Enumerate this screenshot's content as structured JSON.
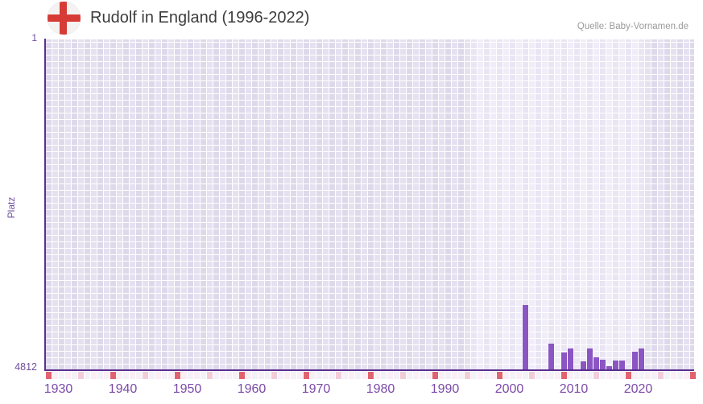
{
  "header": {
    "title": "Rudolf in England (1996-2022)",
    "source": "Quelle: Baby-Vornamen.de",
    "flag_icon": "england-flag-icon"
  },
  "chart_data": {
    "type": "bar",
    "title": "Rudolf in England (1996-2022)",
    "xlabel": "",
    "ylabel": "Platz",
    "y_axis": {
      "top_label": "1",
      "bottom_label": "4812",
      "min": 1,
      "max": 4812,
      "inverted": true
    },
    "x_axis": {
      "start_year": 1930,
      "end_year": 2030,
      "tick_years": [
        1930,
        1940,
        1950,
        1960,
        1970,
        1980,
        1990,
        2000,
        2010,
        2020
      ]
    },
    "highlight_range": {
      "from": 1996,
      "to": 2022
    },
    "grid": true,
    "legend": "none",
    "points": [
      {
        "year": 2004,
        "rank": 3860
      },
      {
        "year": 2008,
        "rank": 4424
      },
      {
        "year": 2010,
        "rank": 4553
      },
      {
        "year": 2011,
        "rank": 4497
      },
      {
        "year": 2013,
        "rank": 4684
      },
      {
        "year": 2014,
        "rank": 4499
      },
      {
        "year": 2015,
        "rank": 4623
      },
      {
        "year": 2016,
        "rank": 4658
      },
      {
        "year": 2017,
        "rank": 4748
      },
      {
        "year": 2018,
        "rank": 4670
      },
      {
        "year": 2019,
        "rank": 4670
      },
      {
        "year": 2021,
        "rank": 4538
      },
      {
        "year": 2022,
        "rank": 4499
      }
    ],
    "colors": {
      "bar": "#8b55c4",
      "axis_line": "#5b2f91",
      "grid_a": "#ded9ea",
      "grid_b": "#e5e1f0",
      "band_a": "#e9e5f3",
      "band_b": "#f0edf8",
      "tick_label": "#7b4aa8",
      "rank_label": "#6f4f9e",
      "title": "#3d3d3d",
      "source": "#9b9b9b",
      "strip_decade": "#e0636f",
      "strip_half": "#f2cdd8",
      "strip_even": "#f5f1f9",
      "strip_odd": "#f9eff4",
      "flag_bg": "#f4f3f1",
      "flag_cross": "#d63b36"
    }
  }
}
